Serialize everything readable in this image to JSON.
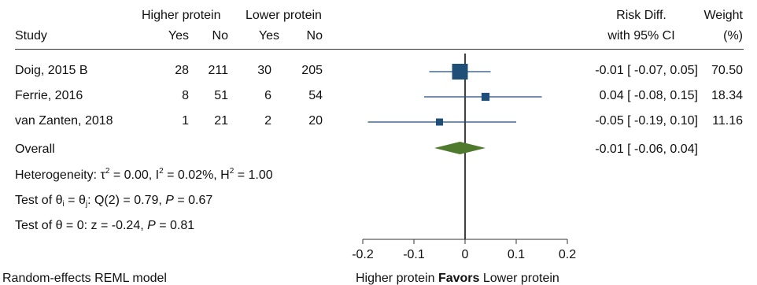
{
  "headers": {
    "group1": "Higher protein",
    "group2": "Lower protein",
    "study": "Study",
    "yes1": "Yes",
    "no1": "No",
    "yes2": "Yes",
    "no2": "No",
    "effect_line1": "Risk Diff.",
    "effect_line2": "with 95% CI",
    "weight_line1": "Weight",
    "weight_line2": "(%)"
  },
  "studies": [
    {
      "name": "Doig, 2015 B",
      "yes1": "28",
      "no1": "211",
      "yes2": "30",
      "no2": "205",
      "ci_text": "-0.01 [ -0.07,  0.05]",
      "weight": "70.50"
    },
    {
      "name": "Ferrie, 2016",
      "yes1": "8",
      "no1": "51",
      "yes2": "6",
      "no2": "54",
      "ci_text": "0.04 [ -0.08,  0.15]",
      "weight": "18.34"
    },
    {
      "name": "van Zanten, 2018",
      "yes1": "1",
      "no1": "21",
      "yes2": "2",
      "no2": "20",
      "ci_text": "-0.05 [ -0.19,  0.10]",
      "weight": "11.16"
    }
  ],
  "overall": {
    "label": "Overall",
    "ci_text": "-0.01 [ -0.06,  0.04]"
  },
  "stats": {
    "het_prefix": "Heterogeneity: ",
    "tau": "τ",
    "tau_val": " = 0.00, I",
    "i2_val": " = 0.02%, H",
    "h2_val": " = 1.00",
    "sq": "2",
    "test1_prefix": "Test of ",
    "theta": "θ",
    "sub_i": "i",
    "sub_j": "j",
    "eq": " = ",
    "test1_mid": ": Q(2) = 0.79, ",
    "p": "P",
    "test1_p": " = 0.67",
    "test2_prefix": "Test of ",
    "test2_mid": " = 0: z = -0.24, ",
    "test2_p": " = 0.81"
  },
  "footer": {
    "model": "Random-effects REML model",
    "favors_left": "Higher protein",
    "favors_word": "Favors",
    "favors_right": "Lower protein"
  },
  "chart_data": {
    "type": "forest",
    "xlim": [
      -0.2,
      0.2
    ],
    "xticks": [
      -0.2,
      -0.1,
      0,
      0.1,
      0.2
    ],
    "xtick_labels": [
      "-0.2",
      "-0.1",
      "0",
      "0.1",
      "0.2"
    ],
    "null_line": 0,
    "colors": {
      "marker": "#1f4e79",
      "ci_line": "#1f4e79",
      "diamond": "#4f7a2e",
      "null_line": "#000000",
      "axis": "#333333"
    },
    "series": [
      {
        "name": "Doig, 2015 B",
        "estimate": -0.01,
        "lower": -0.07,
        "upper": 0.05,
        "weight": 70.5
      },
      {
        "name": "Ferrie, 2016",
        "estimate": 0.04,
        "lower": -0.08,
        "upper": 0.15,
        "weight": 18.34
      },
      {
        "name": "van Zanten, 2018",
        "estimate": -0.05,
        "lower": -0.19,
        "upper": 0.1,
        "weight": 11.16
      }
    ],
    "overall": {
      "estimate": -0.01,
      "lower": -0.06,
      "upper": 0.04
    }
  }
}
